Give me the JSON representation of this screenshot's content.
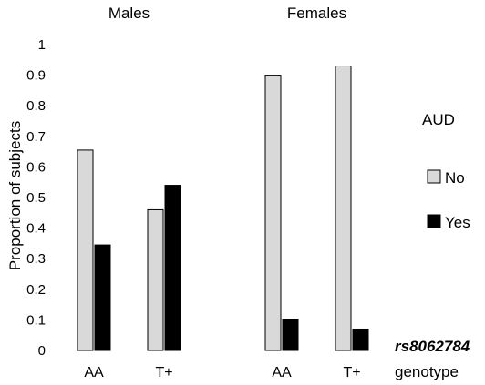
{
  "chart_data": {
    "type": "bar",
    "groups": [
      "Males",
      "Females"
    ],
    "categories": [
      "AA",
      "T+",
      "AA",
      "T+"
    ],
    "series": [
      {
        "name": "No",
        "color": "#d9d9d9",
        "values": [
          0.655,
          0.46,
          0.9,
          0.93
        ]
      },
      {
        "name": "Yes",
        "color": "#000000",
        "values": [
          0.345,
          0.54,
          0.1,
          0.07
        ]
      }
    ],
    "ylabel": "Proportion of subjects",
    "xlabel_bold": "rs8062784",
    "xlabel_sub": "genotype",
    "legend_title": "AUD",
    "ylim": [
      0,
      1
    ],
    "yticks": [
      "0",
      "0.1",
      "0.2",
      "0.3",
      "0.4",
      "0.5",
      "0.6",
      "0.7",
      "0.8",
      "0.9",
      "1"
    ],
    "legend_position": "right",
    "grid": false
  }
}
